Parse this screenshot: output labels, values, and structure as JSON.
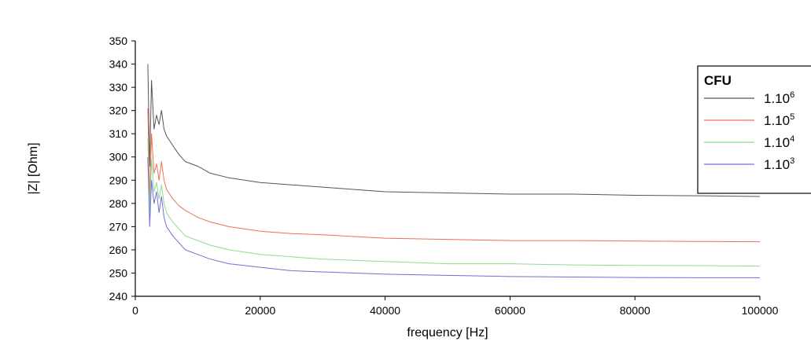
{
  "chart_data": {
    "type": "line",
    "title": "",
    "xlabel": "frequency [Hz]",
    "ylabel": "|Z| [Ohm]",
    "xlim": [
      0,
      100000
    ],
    "ylim": [
      240,
      350
    ],
    "x_ticks": [
      "0",
      "20000",
      "40000",
      "60000",
      "80000",
      "100000"
    ],
    "y_ticks": [
      "240",
      "250",
      "260",
      "270",
      "280",
      "290",
      "300",
      "310",
      "320",
      "330",
      "340",
      "350"
    ],
    "grid": false,
    "legend": {
      "title": "CFU",
      "placement": "right"
    },
    "series": [
      {
        "name": "1.10",
        "name_sup": "6",
        "color": "#555555",
        "x": [
          2000,
          2300,
          2600,
          3000,
          3400,
          3800,
          4200,
          4600,
          5000,
          6000,
          7000,
          8000,
          10000,
          12000,
          15000,
          20000,
          25000,
          30000,
          40000,
          50000,
          60000,
          70000,
          80000,
          90000,
          100000
        ],
        "y": [
          340,
          296,
          333,
          312,
          318,
          314,
          320,
          312,
          309,
          305,
          301,
          298,
          296,
          293,
          291,
          289,
          288,
          287,
          285,
          284.5,
          284,
          284,
          283.5,
          283.3,
          283
        ]
      },
      {
        "name": "1.10",
        "name_sup": "5",
        "color": "#f07050",
        "x": [
          2000,
          2300,
          2600,
          3000,
          3400,
          3800,
          4200,
          4600,
          5000,
          6000,
          7000,
          8000,
          10000,
          12000,
          15000,
          20000,
          25000,
          30000,
          40000,
          50000,
          60000,
          70000,
          80000,
          90000,
          100000
        ],
        "y": [
          321,
          282,
          310,
          293,
          297,
          290,
          298,
          290,
          286,
          282,
          279,
          277,
          274,
          272,
          270,
          268,
          267,
          266.5,
          265,
          264.5,
          264,
          264,
          263.8,
          263.6,
          263.5
        ]
      },
      {
        "name": "1.10",
        "name_sup": "4",
        "color": "#8fd98f",
        "x": [
          2000,
          2300,
          2600,
          3000,
          3400,
          3800,
          4200,
          4600,
          5000,
          6000,
          7000,
          8000,
          10000,
          12000,
          15000,
          20000,
          25000,
          30000,
          40000,
          50000,
          60000,
          70000,
          80000,
          90000,
          100000
        ],
        "y": [
          308,
          276,
          299,
          285,
          289,
          282,
          288,
          280,
          276,
          272,
          269,
          266,
          264,
          262,
          260,
          258,
          257,
          256,
          255,
          254,
          254,
          253.5,
          253.3,
          253.2,
          253
        ]
      },
      {
        "name": "1.10",
        "name_sup": "3",
        "color": "#7070d8",
        "x": [
          2000,
          2300,
          2600,
          3000,
          3400,
          3800,
          4200,
          4600,
          5000,
          6000,
          7000,
          8000,
          10000,
          12000,
          15000,
          20000,
          25000,
          30000,
          40000,
          50000,
          60000,
          70000,
          80000,
          90000,
          100000
        ],
        "y": [
          300,
          270,
          290,
          280,
          285,
          276,
          283,
          274,
          270,
          266,
          263,
          260,
          258,
          256,
          254,
          252.5,
          251,
          250.5,
          249.5,
          249,
          248.5,
          248.3,
          248.1,
          248,
          248
        ]
      }
    ]
  }
}
